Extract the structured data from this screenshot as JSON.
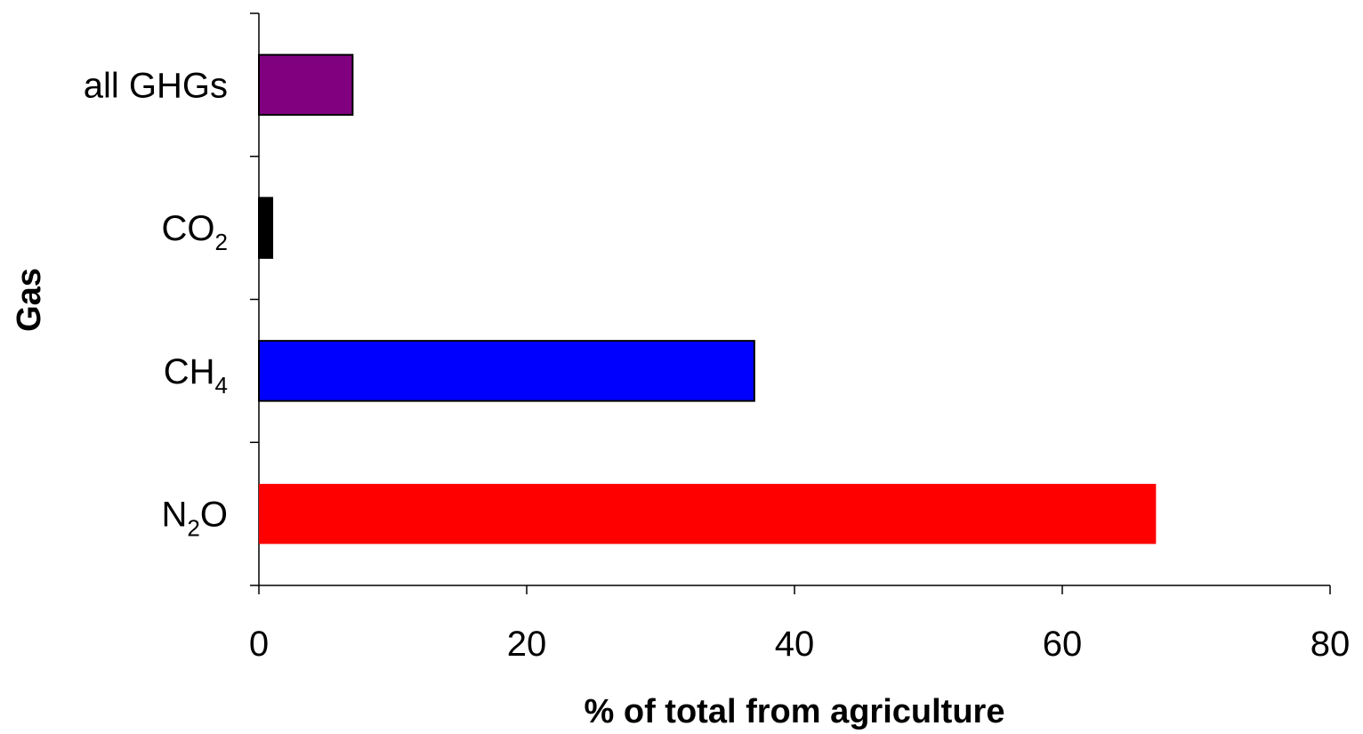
{
  "chart_data": {
    "type": "bar",
    "orientation": "horizontal",
    "xlabel": "% of total from agriculture",
    "ylabel": "Gas",
    "xlim": [
      0,
      80
    ],
    "x_ticks": [
      0,
      20,
      40,
      60,
      80
    ],
    "grid": false,
    "categories": [
      {
        "base": "all GHGs",
        "sub": "",
        "tail": ""
      },
      {
        "base": "CO",
        "sub": "2",
        "tail": ""
      },
      {
        "base": "CH",
        "sub": "4",
        "tail": ""
      },
      {
        "base": "N",
        "sub": "2",
        "tail": "O"
      }
    ],
    "values": [
      7,
      1,
      37,
      67
    ],
    "colors": [
      "#800080",
      "#000000",
      "#0000ff",
      "#ff0000"
    ]
  }
}
